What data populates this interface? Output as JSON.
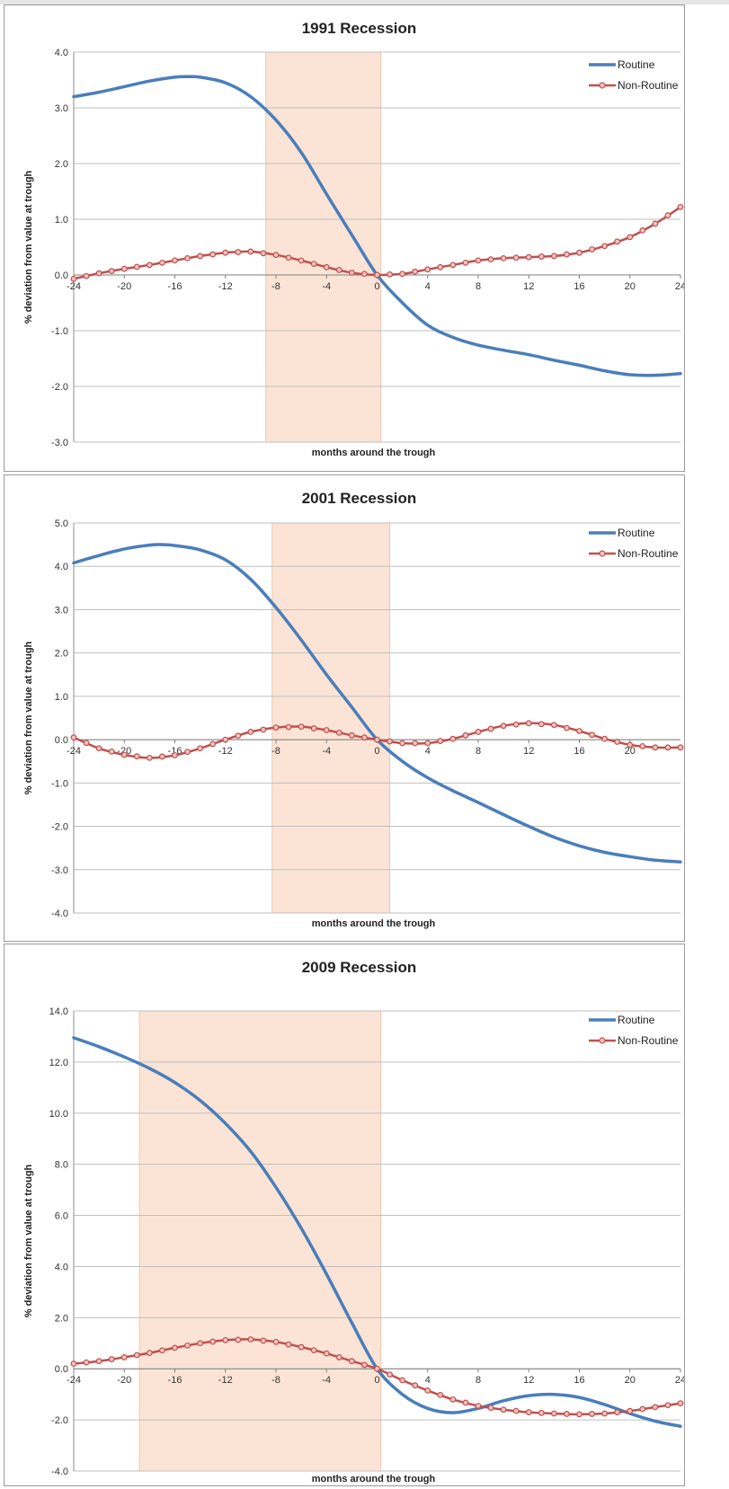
{
  "colors": {
    "routine": "#4a7ebb",
    "non_routine": "#c0504d",
    "non_routine_marker_fill": "#f2c4c2",
    "recession_shade": "#fbe4d5",
    "grid": "#bfbfbf"
  },
  "chart_data": [
    {
      "type": "line",
      "title": "1991 Recession",
      "xlabel": "months around the trough",
      "ylabel": "% deviation from value at trough",
      "ylim": [
        -3.0,
        4.0
      ],
      "yticks": [
        -3.0,
        -2.0,
        -1.0,
        0.0,
        1.0,
        2.0,
        3.0,
        4.0
      ],
      "ytick_labels": [
        "-3.0",
        "-2.0",
        "-1.0",
        "0.0",
        "1.0",
        "2.0",
        "3.0",
        "4.0"
      ],
      "xlim": [
        -24,
        24
      ],
      "xticks": [
        -24,
        -20,
        -16,
        -12,
        -8,
        -4,
        0,
        4,
        8,
        12,
        16,
        20,
        24
      ],
      "xtick_labels": [
        "-24",
        "-20",
        "-16",
        "-12",
        "-8",
        "-4",
        "0",
        "4",
        "8",
        "12",
        "16",
        "20",
        "24"
      ],
      "recession_band": [
        -8.8,
        0.3
      ],
      "grid": true,
      "legend_position": "top-right",
      "series": [
        {
          "name": "Routine",
          "marker": false,
          "x": [
            -24,
            -22,
            -20,
            -18,
            -16,
            -15,
            -14,
            -12,
            -10,
            -8,
            -6,
            -4,
            -2,
            0,
            2,
            4,
            6,
            8,
            10,
            12,
            14,
            16,
            18,
            20,
            22,
            24
          ],
          "y": [
            3.2,
            3.28,
            3.38,
            3.48,
            3.55,
            3.56,
            3.55,
            3.45,
            3.2,
            2.78,
            2.2,
            1.45,
            0.72,
            0.0,
            -0.5,
            -0.9,
            -1.12,
            -1.26,
            -1.35,
            -1.43,
            -1.53,
            -1.62,
            -1.72,
            -1.79,
            -1.8,
            -1.77
          ]
        },
        {
          "name": "Non-Routine",
          "marker": true,
          "x": [
            -24,
            -22,
            -20,
            -18,
            -16,
            -14,
            -12,
            -10,
            -8,
            -6,
            -4,
            -2,
            0,
            2,
            4,
            6,
            8,
            10,
            12,
            14,
            16,
            18,
            20,
            22,
            24
          ],
          "y": [
            -0.07,
            0.03,
            0.11,
            0.18,
            0.26,
            0.34,
            0.4,
            0.42,
            0.36,
            0.26,
            0.14,
            0.04,
            0.0,
            0.02,
            0.1,
            0.18,
            0.26,
            0.3,
            0.32,
            0.34,
            0.4,
            0.52,
            0.68,
            0.92,
            1.22
          ]
        }
      ]
    },
    {
      "type": "line",
      "title": "2001 Recession",
      "xlabel": "months around the trough",
      "ylabel": "% deviation from value at trough",
      "ylim": [
        -4.0,
        5.0
      ],
      "yticks": [
        -4.0,
        -3.0,
        -2.0,
        -1.0,
        0.0,
        1.0,
        2.0,
        3.0,
        4.0,
        5.0
      ],
      "ytick_labels": [
        "-4.0",
        "-3.0",
        "-2.0",
        "-1.0",
        "0.0",
        "1.0",
        "2.0",
        "3.0",
        "4.0",
        "5.0"
      ],
      "xlim": [
        -24,
        24
      ],
      "xticks": [
        -24,
        -20,
        -16,
        -12,
        -8,
        -4,
        0,
        4,
        8,
        12,
        16,
        20
      ],
      "xtick_labels": [
        "-24",
        "-20",
        "-16",
        "-12",
        "-8",
        "-4",
        "0",
        "4",
        "8",
        "12",
        "16",
        "20"
      ],
      "recession_band": [
        -8.3,
        1.0
      ],
      "grid": true,
      "legend_position": "top-right",
      "series": [
        {
          "name": "Routine",
          "marker": false,
          "x": [
            -24,
            -22,
            -20,
            -18,
            -17,
            -16,
            -14,
            -12,
            -10,
            -8,
            -6,
            -4,
            -2,
            0,
            2,
            4,
            6,
            8,
            10,
            12,
            14,
            16,
            18,
            20,
            22,
            24
          ],
          "y": [
            4.08,
            4.25,
            4.4,
            4.49,
            4.5,
            4.48,
            4.38,
            4.15,
            3.7,
            3.05,
            2.3,
            1.5,
            0.75,
            0.0,
            -0.5,
            -0.88,
            -1.18,
            -1.45,
            -1.73,
            -2.0,
            -2.25,
            -2.45,
            -2.6,
            -2.7,
            -2.78,
            -2.82
          ]
        },
        {
          "name": "Non-Routine",
          "marker": true,
          "x": [
            -24,
            -22,
            -20,
            -18,
            -16,
            -14,
            -12,
            -10,
            -8,
            -6,
            -4,
            -2,
            0,
            2,
            4,
            6,
            8,
            10,
            12,
            14,
            16,
            18,
            20,
            22,
            24
          ],
          "y": [
            0.05,
            -0.2,
            -0.35,
            -0.42,
            -0.36,
            -0.2,
            0.0,
            0.18,
            0.28,
            0.3,
            0.22,
            0.1,
            0.0,
            -0.08,
            -0.08,
            0.02,
            0.18,
            0.32,
            0.38,
            0.34,
            0.2,
            0.02,
            -0.12,
            -0.18,
            -0.18
          ]
        }
      ]
    },
    {
      "type": "line",
      "title": "2009 Recession",
      "xlabel": "months around the trough",
      "ylabel": "% deviation from value at trough",
      "ylim": [
        -4.0,
        14.0
      ],
      "yticks": [
        -4.0,
        -2.0,
        0.0,
        2.0,
        4.0,
        6.0,
        8.0,
        10.0,
        12.0,
        14.0
      ],
      "ytick_labels": [
        "-4.0",
        "-2.0",
        "0.0",
        "2.0",
        "4.0",
        "6.0",
        "8.0",
        "10.0",
        "12.0",
        "14.0"
      ],
      "xlim": [
        -24,
        24
      ],
      "xticks": [
        -24,
        -20,
        -16,
        -12,
        -8,
        -4,
        0,
        4,
        8,
        12,
        16,
        20,
        24
      ],
      "xtick_labels": [
        "-24",
        "-20",
        "-16",
        "-12",
        "-8",
        "-4",
        "0",
        "4",
        "8",
        "12",
        "16",
        "20",
        "24"
      ],
      "recession_band": [
        -18.8,
        0.3
      ],
      "grid": true,
      "legend_position": "top-right",
      "series": [
        {
          "name": "Routine",
          "marker": false,
          "x": [
            -24,
            -22,
            -20,
            -18,
            -16,
            -14,
            -12,
            -10,
            -8,
            -6,
            -4,
            -2,
            0,
            2,
            4,
            6,
            8,
            10,
            12,
            14,
            16,
            18,
            20,
            22,
            24
          ],
          "y": [
            12.95,
            12.6,
            12.2,
            11.75,
            11.2,
            10.5,
            9.6,
            8.5,
            7.1,
            5.5,
            3.7,
            1.8,
            0.0,
            -1.0,
            -1.55,
            -1.72,
            -1.55,
            -1.25,
            -1.05,
            -1.0,
            -1.12,
            -1.4,
            -1.75,
            -2.05,
            -2.25
          ]
        },
        {
          "name": "Non-Routine",
          "marker": true,
          "x": [
            -24,
            -22,
            -20,
            -18,
            -16,
            -14,
            -12,
            -10,
            -8,
            -6,
            -4,
            -2,
            0,
            2,
            4,
            6,
            8,
            10,
            12,
            14,
            16,
            18,
            20,
            22,
            24
          ],
          "y": [
            0.2,
            0.3,
            0.45,
            0.62,
            0.82,
            1.0,
            1.12,
            1.15,
            1.05,
            0.85,
            0.6,
            0.3,
            0.0,
            -0.45,
            -0.85,
            -1.2,
            -1.45,
            -1.6,
            -1.7,
            -1.75,
            -1.78,
            -1.75,
            -1.65,
            -1.5,
            -1.35
          ]
        }
      ]
    }
  ]
}
